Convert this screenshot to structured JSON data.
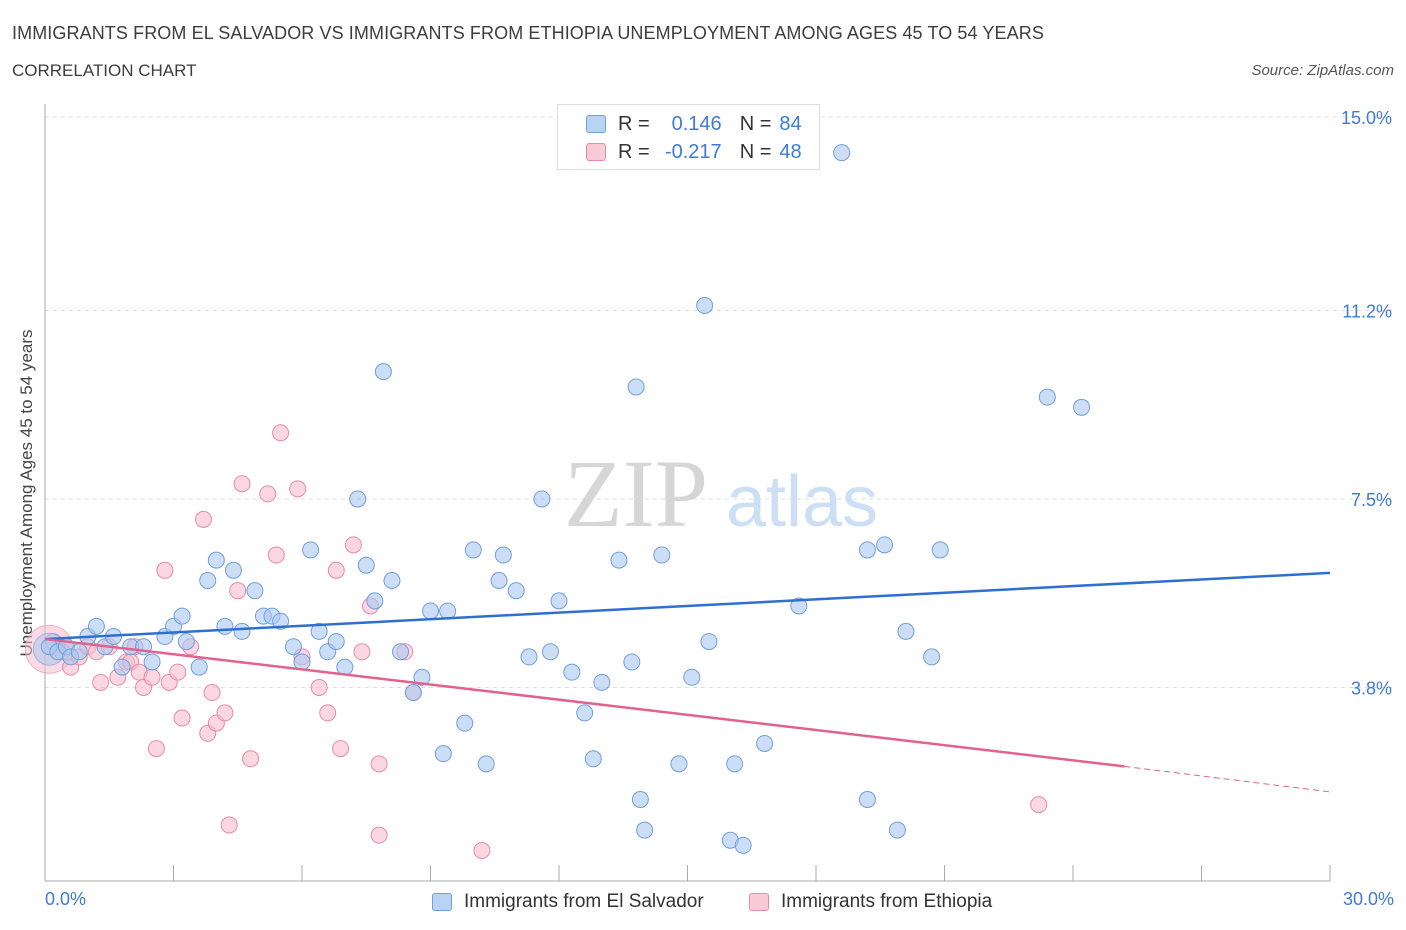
{
  "header": {
    "title": "IMMIGRANTS FROM EL SALVADOR VS IMMIGRANTS FROM ETHIOPIA UNEMPLOYMENT AMONG AGES 45 TO 54 YEARS",
    "subtitle": "CORRELATION CHART",
    "source": "Source: ZipAtlas.com"
  },
  "legend": {
    "rows": [
      {
        "r_label": "R =",
        "r_value": "0.146",
        "n_label": "N =",
        "n_value": "84"
      },
      {
        "r_label": "R =",
        "r_value": "-0.217",
        "n_label": "N =",
        "n_value": "48"
      }
    ]
  },
  "watermark": {
    "zip": "ZIP",
    "atlas": "atlas"
  },
  "colors": {
    "blue_fill": "#aac8f0",
    "blue_stroke": "#6f9fdc",
    "blue_line": "#2e6fd0",
    "pink_fill": "#f6bccd",
    "pink_stroke": "#e98aa8",
    "pink_line": "#e0628e",
    "tick_label": "#3e7bd6",
    "grid": "#dddddd"
  },
  "chart_data": {
    "type": "scatter",
    "title": "IMMIGRANTS FROM EL SALVADOR VS IMMIGRANTS FROM ETHIOPIA UNEMPLOYMENT AMONG AGES 45 TO 54 YEARS",
    "xlabel": "",
    "ylabel": "Unemployment Among Ages 45 to 54 years",
    "xlim": [
      0,
      30
    ],
    "ylim": [
      0,
      15.0
    ],
    "x_tick_labels": [
      "0.0%",
      "30.0%"
    ],
    "y_ticks": [
      3.8,
      7.5,
      11.2,
      15.0
    ],
    "y_tick_labels": [
      "3.8%",
      "7.5%",
      "11.2%",
      "15.0%"
    ],
    "grid": "horizontal dashed",
    "legend_placement": "top-center",
    "series": [
      {
        "name": "Immigrants from El Salvador",
        "color": "#aac8f0",
        "R": 0.146,
        "N": 84,
        "trend": {
          "x": [
            0,
            30
          ],
          "y": [
            4.75,
            6.05
          ]
        },
        "points": [
          [
            0.1,
            4.6
          ],
          [
            0.3,
            4.5
          ],
          [
            0.5,
            4.6
          ],
          [
            0.6,
            4.4
          ],
          [
            0.8,
            4.5
          ],
          [
            1.0,
            4.8
          ],
          [
            1.2,
            5.0
          ],
          [
            1.4,
            4.6
          ],
          [
            1.6,
            4.8
          ],
          [
            1.8,
            4.2
          ],
          [
            2.0,
            4.6
          ],
          [
            2.3,
            4.6
          ],
          [
            2.5,
            4.3
          ],
          [
            2.8,
            4.8
          ],
          [
            3.0,
            5.0
          ],
          [
            3.2,
            5.2
          ],
          [
            3.3,
            4.7
          ],
          [
            3.6,
            4.2
          ],
          [
            3.8,
            5.9
          ],
          [
            4.0,
            6.3
          ],
          [
            4.2,
            5.0
          ],
          [
            4.4,
            6.1
          ],
          [
            4.6,
            4.9
          ],
          [
            4.9,
            5.7
          ],
          [
            5.1,
            5.2
          ],
          [
            5.3,
            5.2
          ],
          [
            5.5,
            5.1
          ],
          [
            5.8,
            4.6
          ],
          [
            6.0,
            4.3
          ],
          [
            6.2,
            6.5
          ],
          [
            6.4,
            4.9
          ],
          [
            6.6,
            4.5
          ],
          [
            6.8,
            4.7
          ],
          [
            7.0,
            4.2
          ],
          [
            7.3,
            7.5
          ],
          [
            7.5,
            6.2
          ],
          [
            7.7,
            5.5
          ],
          [
            7.9,
            10.0
          ],
          [
            8.1,
            5.9
          ],
          [
            8.3,
            4.5
          ],
          [
            8.6,
            3.7
          ],
          [
            8.8,
            4.0
          ],
          [
            9.0,
            5.3
          ],
          [
            9.3,
            2.5
          ],
          [
            9.4,
            5.3
          ],
          [
            9.8,
            3.1
          ],
          [
            10.0,
            6.5
          ],
          [
            10.3,
            2.3
          ],
          [
            10.6,
            5.9
          ],
          [
            10.7,
            6.4
          ],
          [
            11.0,
            5.7
          ],
          [
            11.3,
            4.4
          ],
          [
            11.6,
            7.5
          ],
          [
            11.8,
            4.5
          ],
          [
            12.0,
            5.5
          ],
          [
            12.3,
            4.1
          ],
          [
            12.6,
            3.3
          ],
          [
            12.8,
            2.4
          ],
          [
            13.0,
            3.9
          ],
          [
            13.4,
            6.3
          ],
          [
            13.7,
            4.3
          ],
          [
            13.8,
            9.7
          ],
          [
            13.9,
            1.6
          ],
          [
            14.0,
            1.0
          ],
          [
            14.4,
            6.4
          ],
          [
            14.8,
            2.3
          ],
          [
            15.1,
            4.0
          ],
          [
            15.4,
            11.3
          ],
          [
            15.5,
            4.7
          ],
          [
            16.0,
            0.8
          ],
          [
            16.1,
            2.3
          ],
          [
            16.3,
            0.7
          ],
          [
            16.8,
            2.7
          ],
          [
            17.6,
            5.4
          ],
          [
            18.6,
            14.3
          ],
          [
            19.2,
            6.5
          ],
          [
            19.2,
            1.6
          ],
          [
            19.6,
            6.6
          ],
          [
            19.9,
            1.0
          ],
          [
            20.1,
            4.9
          ],
          [
            20.7,
            4.4
          ],
          [
            20.9,
            6.5
          ],
          [
            23.4,
            9.5
          ],
          [
            24.2,
            9.3
          ]
        ]
      },
      {
        "name": "Immigrants from Ethiopia",
        "color": "#f6bccd",
        "R": -0.217,
        "N": 48,
        "trend": {
          "x": [
            0,
            25.2
          ],
          "y": [
            4.75,
            2.25
          ]
        },
        "trend_dashed": {
          "x": [
            25.2,
            30
          ],
          "y": [
            2.25,
            1.75
          ]
        },
        "points": [
          [
            0.2,
            4.7
          ],
          [
            0.4,
            4.5
          ],
          [
            0.6,
            4.2
          ],
          [
            0.8,
            4.4
          ],
          [
            1.0,
            4.6
          ],
          [
            1.2,
            4.5
          ],
          [
            1.3,
            3.9
          ],
          [
            1.5,
            4.6
          ],
          [
            1.7,
            4.0
          ],
          [
            1.9,
            4.3
          ],
          [
            2.0,
            4.3
          ],
          [
            2.1,
            4.6
          ],
          [
            2.2,
            4.1
          ],
          [
            2.3,
            3.8
          ],
          [
            2.5,
            4.0
          ],
          [
            2.6,
            2.6
          ],
          [
            2.8,
            6.1
          ],
          [
            2.9,
            3.9
          ],
          [
            3.1,
            4.1
          ],
          [
            3.2,
            3.2
          ],
          [
            3.4,
            4.6
          ],
          [
            3.7,
            7.1
          ],
          [
            3.8,
            2.9
          ],
          [
            3.9,
            3.7
          ],
          [
            4.0,
            3.1
          ],
          [
            4.2,
            3.3
          ],
          [
            4.3,
            1.1
          ],
          [
            4.5,
            5.7
          ],
          [
            4.6,
            7.8
          ],
          [
            4.8,
            2.4
          ],
          [
            5.2,
            7.6
          ],
          [
            5.4,
            6.4
          ],
          [
            5.5,
            8.8
          ],
          [
            5.9,
            7.7
          ],
          [
            6.0,
            4.4
          ],
          [
            6.4,
            3.8
          ],
          [
            6.6,
            3.3
          ],
          [
            6.8,
            6.1
          ],
          [
            6.9,
            2.6
          ],
          [
            7.2,
            6.6
          ],
          [
            7.4,
            4.5
          ],
          [
            7.6,
            5.4
          ],
          [
            7.8,
            2.3
          ],
          [
            7.8,
            0.9
          ],
          [
            8.4,
            4.5
          ],
          [
            8.6,
            3.7
          ],
          [
            10.2,
            0.6
          ],
          [
            23.2,
            1.5
          ]
        ]
      }
    ]
  },
  "bottom_legend": {
    "items": [
      {
        "label": "Immigrants from El Salvador"
      },
      {
        "label": "Immigrants from Ethiopia"
      }
    ]
  }
}
